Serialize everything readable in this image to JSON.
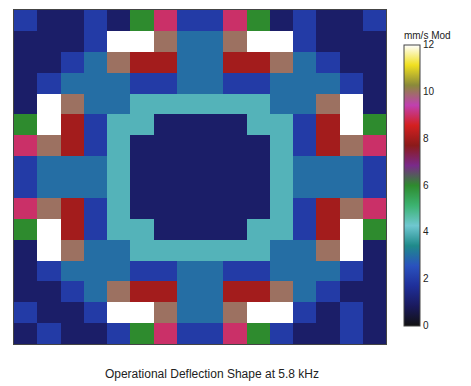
{
  "chart_data": {
    "type": "heatmap",
    "title": "Operational Deflection Shape at 5.8 kHz",
    "colorbar_title": "mm/s Mod",
    "zlim": [
      0,
      12
    ],
    "zticks": [
      0,
      2,
      4,
      6,
      8,
      10,
      12
    ],
    "tick_labels": false,
    "cells": [
      [
        2,
        1,
        1,
        2,
        1,
        6,
        9,
        2,
        2,
        9,
        6,
        1,
        2,
        1,
        1,
        2
      ],
      [
        1,
        1,
        1,
        2,
        12,
        12,
        10,
        3,
        3,
        10,
        12,
        12,
        2,
        1,
        1,
        1
      ],
      [
        1,
        1,
        2,
        3,
        10,
        8,
        8,
        3,
        3,
        8,
        8,
        10,
        3,
        2,
        1,
        1
      ],
      [
        1,
        2,
        3,
        3,
        3,
        2,
        2,
        3,
        3,
        2,
        2,
        3,
        3,
        3,
        2,
        1
      ],
      [
        1,
        12,
        10,
        3,
        3,
        4,
        4,
        4,
        4,
        4,
        4,
        3,
        3,
        10,
        12,
        1
      ],
      [
        6,
        12,
        8,
        2,
        4,
        4,
        1,
        1,
        1,
        1,
        4,
        4,
        2,
        8,
        12,
        6
      ],
      [
        9,
        10,
        8,
        2,
        4,
        1,
        1,
        1,
        1,
        1,
        1,
        4,
        2,
        8,
        10,
        9
      ],
      [
        2,
        3,
        3,
        3,
        4,
        1,
        1,
        1,
        1,
        1,
        1,
        4,
        3,
        3,
        3,
        2
      ],
      [
        2,
        3,
        3,
        3,
        4,
        1,
        1,
        1,
        1,
        1,
        1,
        4,
        3,
        3,
        3,
        2
      ],
      [
        9,
        10,
        8,
        2,
        4,
        1,
        1,
        1,
        1,
        1,
        1,
        4,
        2,
        8,
        10,
        9
      ],
      [
        6,
        12,
        8,
        2,
        4,
        4,
        1,
        1,
        1,
        1,
        4,
        4,
        2,
        8,
        12,
        6
      ],
      [
        1,
        12,
        10,
        3,
        3,
        4,
        4,
        4,
        4,
        4,
        4,
        3,
        3,
        10,
        12,
        1
      ],
      [
        1,
        2,
        3,
        3,
        3,
        2,
        2,
        3,
        3,
        2,
        2,
        3,
        3,
        3,
        2,
        1
      ],
      [
        1,
        1,
        2,
        3,
        10,
        8,
        8,
        3,
        3,
        8,
        8,
        10,
        3,
        2,
        1,
        1
      ],
      [
        2,
        1,
        1,
        2,
        12,
        12,
        10,
        3,
        3,
        10,
        12,
        12,
        2,
        1,
        2,
        1
      ],
      [
        1,
        2,
        1,
        1,
        2,
        6,
        9,
        2,
        2,
        9,
        6,
        2,
        1,
        1,
        2,
        1
      ]
    ]
  }
}
